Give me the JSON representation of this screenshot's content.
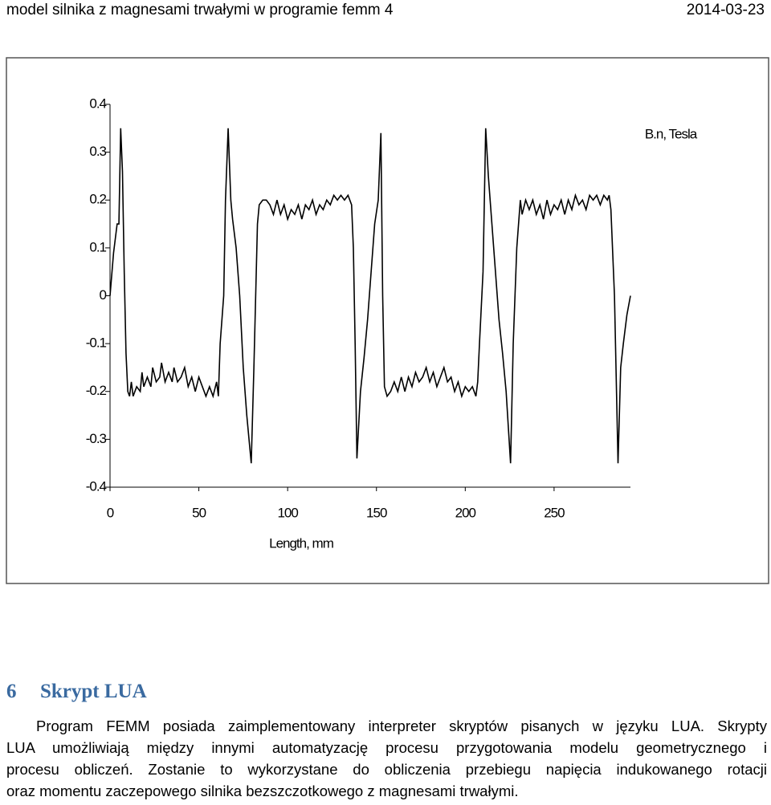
{
  "header": {
    "title": "model silnika z magnesami trwałymi w programie femm 4",
    "date": "2014-03-23"
  },
  "chart_data": {
    "type": "line",
    "ylabel": "B.n, Tesla",
    "xlabel": "Length, mm",
    "xlim": [
      0,
      293
    ],
    "xticks": [
      0,
      50,
      100,
      150,
      200,
      250
    ],
    "ylim": [
      -0.4,
      0.4
    ],
    "yticks": [
      0.4,
      0.3,
      0.2,
      0.1,
      0,
      -0.1,
      -0.2,
      -0.3,
      -0.4
    ],
    "color": "#000000",
    "x": [
      0,
      2,
      4,
      5,
      6,
      7,
      8,
      9,
      10,
      11,
      12,
      13,
      15,
      17,
      18,
      19,
      21,
      23,
      24,
      26,
      28,
      29,
      31,
      33,
      35,
      36,
      38,
      40,
      42,
      44,
      46,
      48,
      50,
      52,
      54,
      56,
      58,
      60,
      61,
      62,
      64,
      65,
      66.5,
      68,
      69,
      71,
      73,
      75,
      77,
      79.5,
      81,
      82,
      83,
      84,
      86,
      88,
      90,
      92,
      94,
      96,
      98,
      100,
      102,
      104,
      106,
      108,
      110,
      112,
      114,
      116,
      118,
      120,
      122,
      124,
      126,
      128,
      130,
      132,
      134,
      136,
      137,
      138,
      139,
      141,
      143,
      145,
      147,
      149,
      151,
      152.5,
      153.5,
      154.5,
      156,
      158,
      160,
      162,
      164,
      166,
      168,
      170,
      172,
      174,
      176,
      178,
      180,
      182,
      184,
      186,
      188,
      190,
      192,
      194,
      196,
      198,
      200,
      202,
      204,
      206,
      207,
      208,
      210,
      211.5,
      213,
      215,
      217,
      219,
      221,
      223,
      225.5,
      227,
      229,
      231,
      232,
      234,
      236,
      238,
      240,
      242,
      244,
      246,
      248,
      250,
      252,
      254,
      256,
      258,
      260,
      262,
      264,
      266,
      268,
      270,
      272,
      274,
      276,
      278,
      280,
      281,
      282,
      284,
      286,
      287.5,
      289,
      291,
      293
    ],
    "values": [
      0,
      0.09,
      0.15,
      0.15,
      0.35,
      0.26,
      0.05,
      -0.12,
      -0.2,
      -0.21,
      -0.18,
      -0.21,
      -0.19,
      -0.2,
      -0.16,
      -0.19,
      -0.17,
      -0.19,
      -0.15,
      -0.18,
      -0.17,
      -0.14,
      -0.18,
      -0.16,
      -0.18,
      -0.15,
      -0.18,
      -0.17,
      -0.15,
      -0.19,
      -0.17,
      -0.2,
      -0.17,
      -0.19,
      -0.21,
      -0.19,
      -0.21,
      -0.18,
      -0.21,
      -0.1,
      0,
      0.2,
      0.35,
      0.2,
      0.16,
      0.1,
      0,
      -0.15,
      -0.25,
      -0.35,
      -0.15,
      0,
      0.15,
      0.19,
      0.2,
      0.2,
      0.19,
      0.17,
      0.2,
      0.17,
      0.19,
      0.16,
      0.18,
      0.17,
      0.19,
      0.16,
      0.19,
      0.18,
      0.2,
      0.17,
      0.19,
      0.18,
      0.2,
      0.19,
      0.21,
      0.2,
      0.21,
      0.2,
      0.21,
      0.19,
      0.1,
      -0.1,
      -0.34,
      -0.2,
      -0.13,
      -0.05,
      0.05,
      0.15,
      0.2,
      0.34,
      0,
      -0.19,
      -0.21,
      -0.2,
      -0.18,
      -0.2,
      -0.17,
      -0.2,
      -0.17,
      -0.19,
      -0.16,
      -0.18,
      -0.17,
      -0.15,
      -0.18,
      -0.16,
      -0.19,
      -0.17,
      -0.15,
      -0.18,
      -0.17,
      -0.2,
      -0.18,
      -0.21,
      -0.19,
      -0.2,
      -0.19,
      -0.21,
      -0.18,
      -0.1,
      0.05,
      0.35,
      0.25,
      0.15,
      0.05,
      -0.05,
      -0.12,
      -0.2,
      -0.35,
      -0.1,
      0.1,
      0.2,
      0.17,
      0.2,
      0.18,
      0.2,
      0.17,
      0.19,
      0.16,
      0.2,
      0.17,
      0.19,
      0.18,
      0.2,
      0.17,
      0.2,
      0.18,
      0.21,
      0.19,
      0.2,
      0.18,
      0.21,
      0.2,
      0.21,
      0.19,
      0.21,
      0.2,
      0.21,
      0.18,
      0,
      -0.35,
      -0.15,
      -0.1,
      -0.04,
      0
    ]
  },
  "section": {
    "number": "6",
    "title": "Skrypt LUA",
    "paragraph_lines": [
      "Program FEMM posiada zaimplementowany interpreter skryptów pisanych w języku LUA. Skrypty",
      "LUA umożliwiają między innymi automatyzację procesu przygotowania modelu geometrycznego i",
      "procesu obliczeń. Zostanie to wykorzystane do obliczenia przebiegu napięcia indukowanego rotacji",
      "oraz momentu zaczepowego silnika bezszczotkowego z magnesami trwałymi."
    ]
  }
}
